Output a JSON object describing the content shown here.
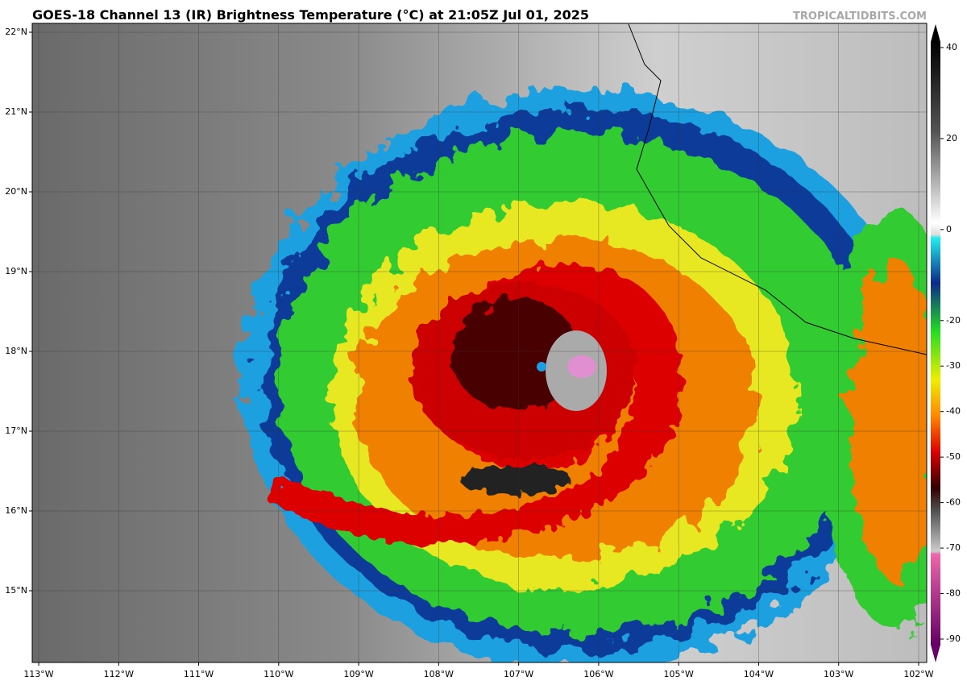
{
  "header": {
    "title": "GOES-18 Channel 13 (IR) Brightness Temperature (°C) at 21:05Z Jul 01, 2025",
    "credit": "TROPICALTIDBITS.COM"
  },
  "map": {
    "lat_ticks": [
      {
        "value": 22,
        "label": "22°N"
      },
      {
        "value": 21,
        "label": "21°N"
      },
      {
        "value": 20,
        "label": "20°N"
      },
      {
        "value": 19,
        "label": "19°N"
      },
      {
        "value": 18,
        "label": "18°N"
      },
      {
        "value": 17,
        "label": "17°N"
      },
      {
        "value": 16,
        "label": "16°N"
      },
      {
        "value": 15,
        "label": "15°N"
      }
    ],
    "lon_ticks": [
      {
        "value": -113,
        "label": "113°W"
      },
      {
        "value": -112,
        "label": "112°W"
      },
      {
        "value": -111,
        "label": "111°W"
      },
      {
        "value": -110,
        "label": "110°W"
      },
      {
        "value": -109,
        "label": "109°W"
      },
      {
        "value": -108,
        "label": "108°W"
      },
      {
        "value": -107,
        "label": "107°W"
      },
      {
        "value": -106,
        "label": "106°W"
      },
      {
        "value": -105,
        "label": "105°W"
      },
      {
        "value": -104,
        "label": "104°W"
      },
      {
        "value": -103,
        "label": "103°W"
      },
      {
        "value": -102,
        "label": "102°W"
      }
    ]
  },
  "colorbar": {
    "ticks": [
      40,
      20,
      0,
      -20,
      -30,
      -40,
      -50,
      -60,
      -70,
      -80,
      -90
    ]
  }
}
